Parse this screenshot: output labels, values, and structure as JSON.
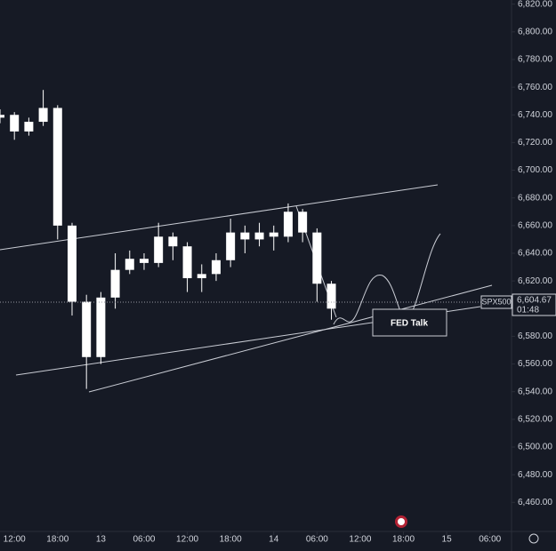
{
  "chart_data": {
    "type": "candlestick",
    "color": "#ffffff",
    "x": [
      -2,
      0,
      2,
      4,
      6,
      8,
      10,
      12,
      14,
      16,
      18,
      20,
      22,
      24,
      26,
      28,
      30,
      32,
      34,
      36,
      38,
      40,
      42,
      44
    ],
    "open": [
      6738,
      6740,
      6728,
      6735,
      6745,
      6660,
      6605,
      6565,
      6608,
      6628,
      6636,
      6633,
      6652,
      6645,
      6622,
      6625,
      6635,
      6655,
      6650,
      6655,
      6652,
      6670,
      6655,
      6618
    ],
    "high": [
      6744,
      6742,
      6738,
      6758,
      6747,
      6662,
      6610,
      6612,
      6640,
      6642,
      6640,
      6662,
      6655,
      6648,
      6632,
      6640,
      6665,
      6660,
      6662,
      6660,
      6676,
      6672,
      6658,
      6620
    ],
    "low": [
      6734,
      6722,
      6725,
      6732,
      6650,
      6595,
      6542,
      6560,
      6600,
      6625,
      6628,
      6630,
      6635,
      6612,
      6612,
      6620,
      6630,
      6640,
      6645,
      6642,
      6648,
      6648,
      6605,
      6592
    ],
    "close": [
      6740,
      6728,
      6735,
      6745,
      6660,
      6605,
      6565,
      6608,
      6628,
      6636,
      6633,
      6652,
      6645,
      6622,
      6625,
      6635,
      6655,
      6650,
      6655,
      6652,
      6670,
      6655,
      6618,
      6600
    ],
    "xlim": [
      -2,
      69
    ],
    "xticks": [
      {
        "value": 0,
        "label": "12:00"
      },
      {
        "value": 6,
        "label": "18:00"
      },
      {
        "value": 12,
        "label": "13"
      },
      {
        "value": 18,
        "label": "06:00"
      },
      {
        "value": 24,
        "label": "12:00"
      },
      {
        "value": 30,
        "label": "18:00"
      },
      {
        "value": 36,
        "label": "14"
      },
      {
        "value": 42,
        "label": "06:00"
      },
      {
        "value": 48,
        "label": "12:00"
      },
      {
        "value": 54,
        "label": "18:00"
      },
      {
        "value": 60,
        "label": "15"
      },
      {
        "value": 66,
        "label": "06:00"
      }
    ],
    "ylim": [
      6439,
      6823
    ],
    "yticks": [
      {
        "value": 6460,
        "label": "6,460.00"
      },
      {
        "value": 6480,
        "label": "6,480.00"
      },
      {
        "value": 6500,
        "label": "6,500.00"
      },
      {
        "value": 6520,
        "label": "6,520.00"
      },
      {
        "value": 6540,
        "label": "6,540.00"
      },
      {
        "value": 6560,
        "label": "6,560.00"
      },
      {
        "value": 6580,
        "label": "6,580.00"
      },
      {
        "value": 6600,
        "label": "6,600.00"
      },
      {
        "value": 6620,
        "label": "6,620.00"
      },
      {
        "value": 6640,
        "label": "6,640.00"
      },
      {
        "value": 6660,
        "label": "6,660.00"
      },
      {
        "value": 6680,
        "label": "6,680.00"
      },
      {
        "value": 6700,
        "label": "6,700.00"
      },
      {
        "value": 6720,
        "label": "6,720.00"
      },
      {
        "value": 6740,
        "label": "6,740.00"
      },
      {
        "value": 6760,
        "label": "6,760.00"
      },
      {
        "value": 6780,
        "label": "6,780.00"
      },
      {
        "value": 6800,
        "label": "6,800.00"
      },
      {
        "value": 6820,
        "label": "6,820.00"
      }
    ],
    "symbol": "SPX500",
    "last_price": {
      "value": 6604.67,
      "label": "6,604.67"
    },
    "countdown": "01:48",
    "annotation": "FED Talk"
  }
}
